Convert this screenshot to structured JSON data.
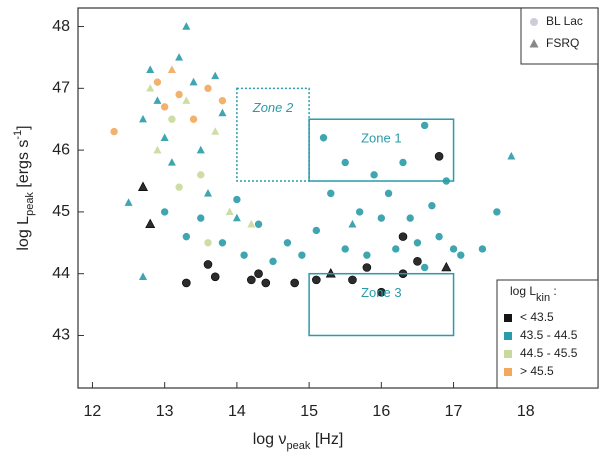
{
  "chart_data": {
    "type": "scatter",
    "x_label": {
      "text": "log ν",
      "sub": "peak",
      "after": " [Hz]"
    },
    "y_label": {
      "text": "log L",
      "sub": "peak",
      "mid": " [ergs s",
      "sup": "-1",
      "after": "]"
    },
    "xlim": [
      11.8,
      19.0
    ],
    "ylim": [
      42.15,
      48.3
    ],
    "xticks": [
      12,
      13,
      14,
      15,
      16,
      17,
      18
    ],
    "yticks": [
      43,
      44,
      45,
      46,
      47,
      48
    ],
    "markers": [
      {
        "name": "BL Lac",
        "shape": "circle"
      },
      {
        "name": "FSRQ",
        "shape": "triangle"
      }
    ],
    "legend_title": {
      "text": "log L",
      "sub": "kin",
      "after": " :"
    },
    "zones": [
      {
        "label": "Zone 1",
        "x": [
          15,
          17
        ],
        "y": [
          45.5,
          46.5
        ],
        "style": "solid"
      },
      {
        "label": "Zone 2",
        "x": [
          14,
          15
        ],
        "y": [
          45.5,
          47
        ],
        "style": "dotted"
      },
      {
        "label": "Zone 3",
        "x": [
          15,
          17
        ],
        "y": [
          43,
          44
        ],
        "style": "solid"
      }
    ],
    "series": [
      {
        "name": "< 43.5",
        "color": "#151515",
        "x": [
          12.7,
          12.8,
          13.3,
          13.6,
          13.7,
          14.2,
          14.3,
          14.4,
          14.8,
          15.1,
          15.3,
          15.6,
          15.8,
          16.0,
          16.3,
          16.5,
          16.9,
          16.8,
          16.3
        ],
        "y": [
          45.4,
          44.8,
          43.85,
          44.15,
          43.95,
          43.9,
          44.0,
          43.85,
          43.85,
          43.9,
          44.0,
          43.9,
          44.1,
          43.7,
          44.0,
          44.2,
          44.1,
          45.9,
          44.6
        ],
        "marker": [
          1,
          1,
          0,
          0,
          0,
          0,
          0,
          0,
          0,
          0,
          1,
          0,
          0,
          0,
          0,
          0,
          1,
          0,
          0
        ]
      },
      {
        "name": "43.5 - 44.5",
        "color": "#2a9ba8",
        "x": [
          12.5,
          12.7,
          12.8,
          12.9,
          13.0,
          13.1,
          13.2,
          13.3,
          13.4,
          13.5,
          13.6,
          13.7,
          13.8,
          13.0,
          13.3,
          13.5,
          13.8,
          14.0,
          14.1,
          14.3,
          14.5,
          14.7,
          14.9,
          15.1,
          15.3,
          15.5,
          15.7,
          15.8,
          15.9,
          16.0,
          16.1,
          16.2,
          16.3,
          16.4,
          16.5,
          16.6,
          16.7,
          16.8,
          16.9,
          17.0,
          17.1,
          17.4,
          17.6,
          17.8,
          12.7,
          15.2,
          15.5,
          14.0,
          16.6,
          15.6
        ],
        "y": [
          45.15,
          46.5,
          47.3,
          46.8,
          46.2,
          45.8,
          47.5,
          48.0,
          47.1,
          46.0,
          45.3,
          47.2,
          46.6,
          45.0,
          44.6,
          44.9,
          44.5,
          45.2,
          44.3,
          44.8,
          44.2,
          44.5,
          44.3,
          44.7,
          45.3,
          44.4,
          45.0,
          44.3,
          45.6,
          44.9,
          45.3,
          44.4,
          45.8,
          44.9,
          44.5,
          46.4,
          45.1,
          44.6,
          45.5,
          44.4,
          44.3,
          44.4,
          45.0,
          45.9,
          43.95,
          46.2,
          45.8,
          44.9,
          44.1,
          44.8
        ],
        "marker": [
          1,
          1,
          1,
          1,
          1,
          1,
          1,
          1,
          1,
          1,
          1,
          1,
          1,
          0,
          0,
          0,
          0,
          0,
          0,
          0,
          0,
          0,
          0,
          0,
          0,
          0,
          0,
          0,
          0,
          0,
          0,
          0,
          0,
          0,
          0,
          0,
          0,
          0,
          0,
          0,
          0,
          0,
          0,
          1,
          1,
          0,
          0,
          1,
          0,
          1
        ]
      },
      {
        "name": "44.5 - 45.5",
        "color": "#c9d99b",
        "x": [
          12.9,
          13.1,
          13.3,
          13.5,
          13.7,
          13.9,
          13.2,
          14.2,
          13.6,
          12.8
        ],
        "y": [
          46.0,
          46.5,
          46.8,
          45.6,
          46.3,
          45.0,
          45.4,
          44.8,
          44.5,
          47.0
        ],
        "marker": [
          1,
          0,
          1,
          0,
          1,
          1,
          0,
          1,
          0,
          1
        ]
      },
      {
        "name": "> 45.5",
        "color": "#f2a95e",
        "x": [
          12.3,
          12.9,
          13.0,
          13.2,
          13.4,
          13.6,
          13.1,
          13.8
        ],
        "y": [
          46.3,
          47.1,
          46.7,
          46.9,
          46.5,
          47.0,
          47.3,
          46.8
        ],
        "marker": [
          0,
          0,
          0,
          0,
          0,
          0,
          1,
          0
        ]
      }
    ]
  }
}
